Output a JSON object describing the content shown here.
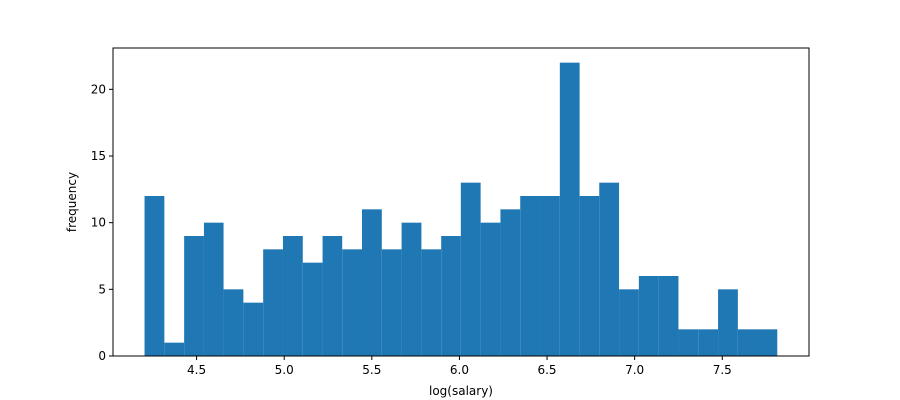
{
  "chart_data": {
    "type": "histogram",
    "xlabel": "log(salary)",
    "ylabel": "frequency",
    "color": "#1f77b4",
    "bins": [
      4.203,
      4.316,
      4.429,
      4.542,
      4.654,
      4.767,
      4.88,
      4.993,
      5.106,
      5.219,
      5.331,
      5.444,
      5.557,
      5.67,
      5.783,
      5.896,
      6.008,
      6.121,
      6.234,
      6.347,
      6.46,
      6.573,
      6.686,
      6.798,
      6.911,
      7.024,
      7.137,
      7.25,
      7.363,
      7.476,
      7.589,
      7.701,
      7.814
    ],
    "values": [
      12,
      1,
      9,
      10,
      5,
      4,
      8,
      9,
      7,
      9,
      8,
      11,
      8,
      10,
      8,
      9,
      13,
      10,
      11,
      12,
      12,
      22,
      12,
      13,
      5,
      6,
      6,
      2,
      2,
      5,
      2,
      2
    ],
    "xlim": [
      4.023,
      7.995
    ],
    "ylim": [
      0,
      23.1
    ],
    "xticks": [
      4.5,
      {
        "value": 5.0,
        "label": "5.0"
      },
      5.5,
      {
        "value": 6.0,
        "label": "6.0"
      },
      6.5,
      {
        "value": 7.0,
        "label": "7.0"
      },
      7.5
    ],
    "yticks": [
      0,
      5,
      10,
      15,
      20
    ],
    "grid": false
  }
}
